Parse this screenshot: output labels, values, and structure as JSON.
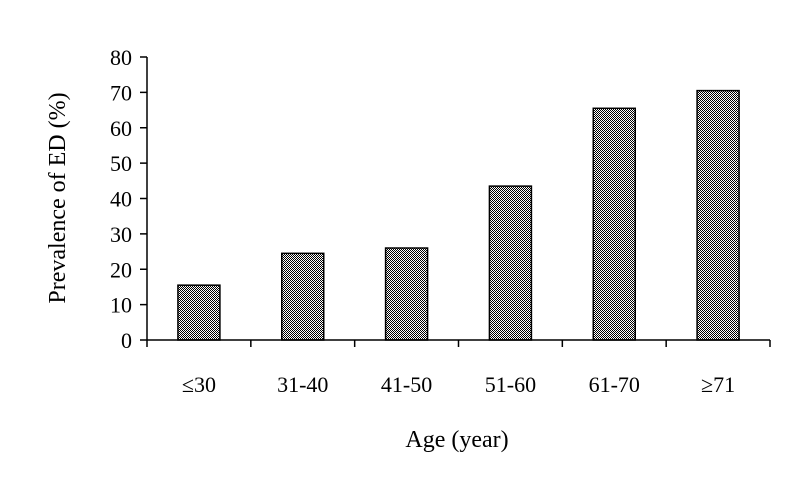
{
  "chart_data": {
    "type": "bar",
    "title": "",
    "xlabel": "Age (year)",
    "ylabel": "Prevalence of ED (%)",
    "categories": [
      "≤30",
      "31-40",
      "41-50",
      "51-60",
      "61-70",
      "≥71"
    ],
    "values": [
      15.5,
      24.5,
      26,
      43.5,
      65.5,
      70.5
    ],
    "ylim": [
      0,
      80
    ],
    "yticks": [
      0,
      10,
      20,
      30,
      40,
      50,
      60,
      70,
      80
    ],
    "grid": false,
    "legend": "none",
    "bar_fill": "checker-gray",
    "colors": {
      "bar_dark": "#000000",
      "bar_light": "#ffffff",
      "axis": "#000000"
    }
  }
}
